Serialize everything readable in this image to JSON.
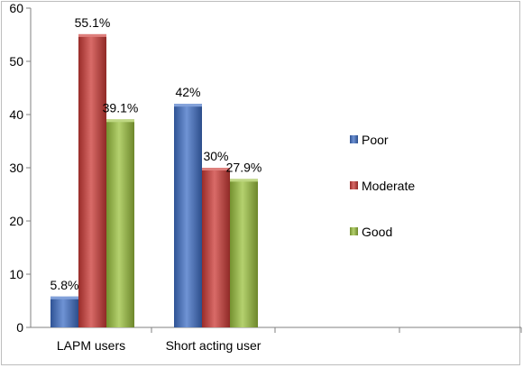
{
  "chart_data": {
    "type": "bar",
    "categories": [
      "LAPM users",
      "Short acting user"
    ],
    "series": [
      {
        "name": "Poor",
        "values": [
          5.8,
          42
        ],
        "labels": [
          "5.8%",
          "42%"
        ],
        "color": "#3f6fc6"
      },
      {
        "name": "Moderate",
        "values": [
          55.1,
          30
        ],
        "labels": [
          "55.1%",
          "30%"
        ],
        "color": "#cc3a36"
      },
      {
        "name": "Good",
        "values": [
          39.1,
          27.9
        ],
        "labels": [
          "39.1%",
          "27.9%"
        ],
        "color": "#9bc13e"
      }
    ],
    "ylim": [
      0,
      60
    ],
    "yticks": [
      "0",
      "10",
      "20",
      "30",
      "40",
      "50",
      "60"
    ],
    "title": "",
    "xlabel": "",
    "ylabel": "",
    "grid": false,
    "legend_position": "right"
  }
}
